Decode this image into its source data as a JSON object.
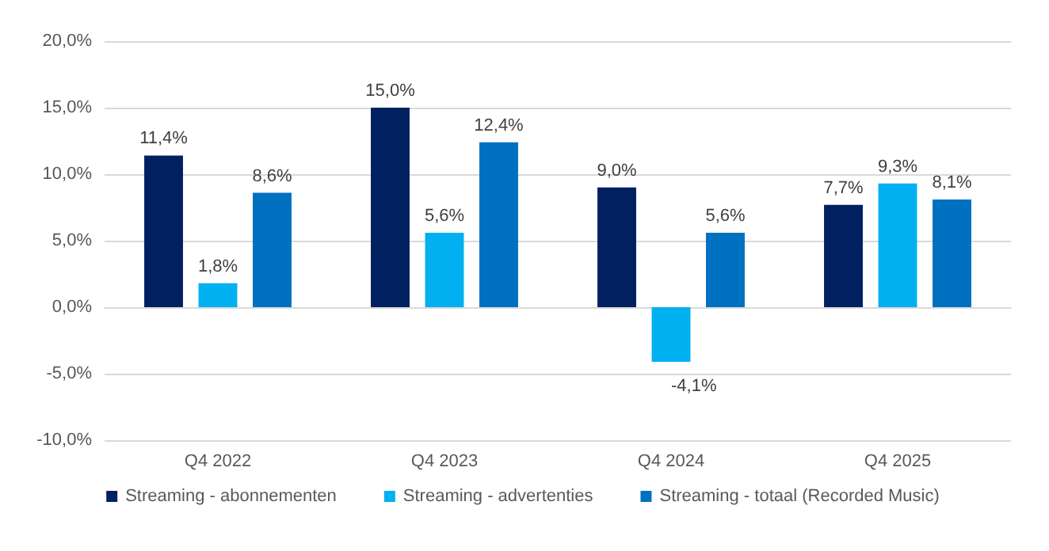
{
  "chart_data": {
    "type": "bar",
    "categories": [
      "Q4 2022",
      "Q4 2023",
      "Q4 2024",
      "Q4 2025"
    ],
    "series": [
      {
        "name": "Streaming - abonnementen",
        "color": "#002060",
        "values": [
          11.4,
          15.0,
          9.0,
          7.7
        ],
        "value_labels": [
          "11,4%",
          "15,0%",
          "9,0%",
          "7,7%"
        ]
      },
      {
        "name": "Streaming - advertenties",
        "color": "#00b0f0",
        "values": [
          1.8,
          5.6,
          -4.1,
          9.3
        ],
        "value_labels": [
          "1,8%",
          "5,6%",
          "-4,1%",
          "9,3%"
        ]
      },
      {
        "name": "Streaming - totaal (Recorded Music)",
        "color": "#0070c0",
        "values": [
          8.6,
          12.4,
          5.6,
          8.1
        ],
        "value_labels": [
          "8,6%",
          "12,4%",
          "5,6%",
          "8,1%"
        ]
      }
    ],
    "ylim": [
      -10,
      20
    ],
    "yticks": [
      {
        "value": -10,
        "label": "-10,0%"
      },
      {
        "value": -5,
        "label": "-5,0%"
      },
      {
        "value": 0,
        "label": "0,0%"
      },
      {
        "value": 5,
        "label": "5,0%"
      },
      {
        "value": 10,
        "label": "10,0%"
      },
      {
        "value": 15,
        "label": "15,0%"
      },
      {
        "value": 20,
        "label": "20,0%"
      }
    ],
    "grid": "y",
    "legend": "bottom"
  }
}
